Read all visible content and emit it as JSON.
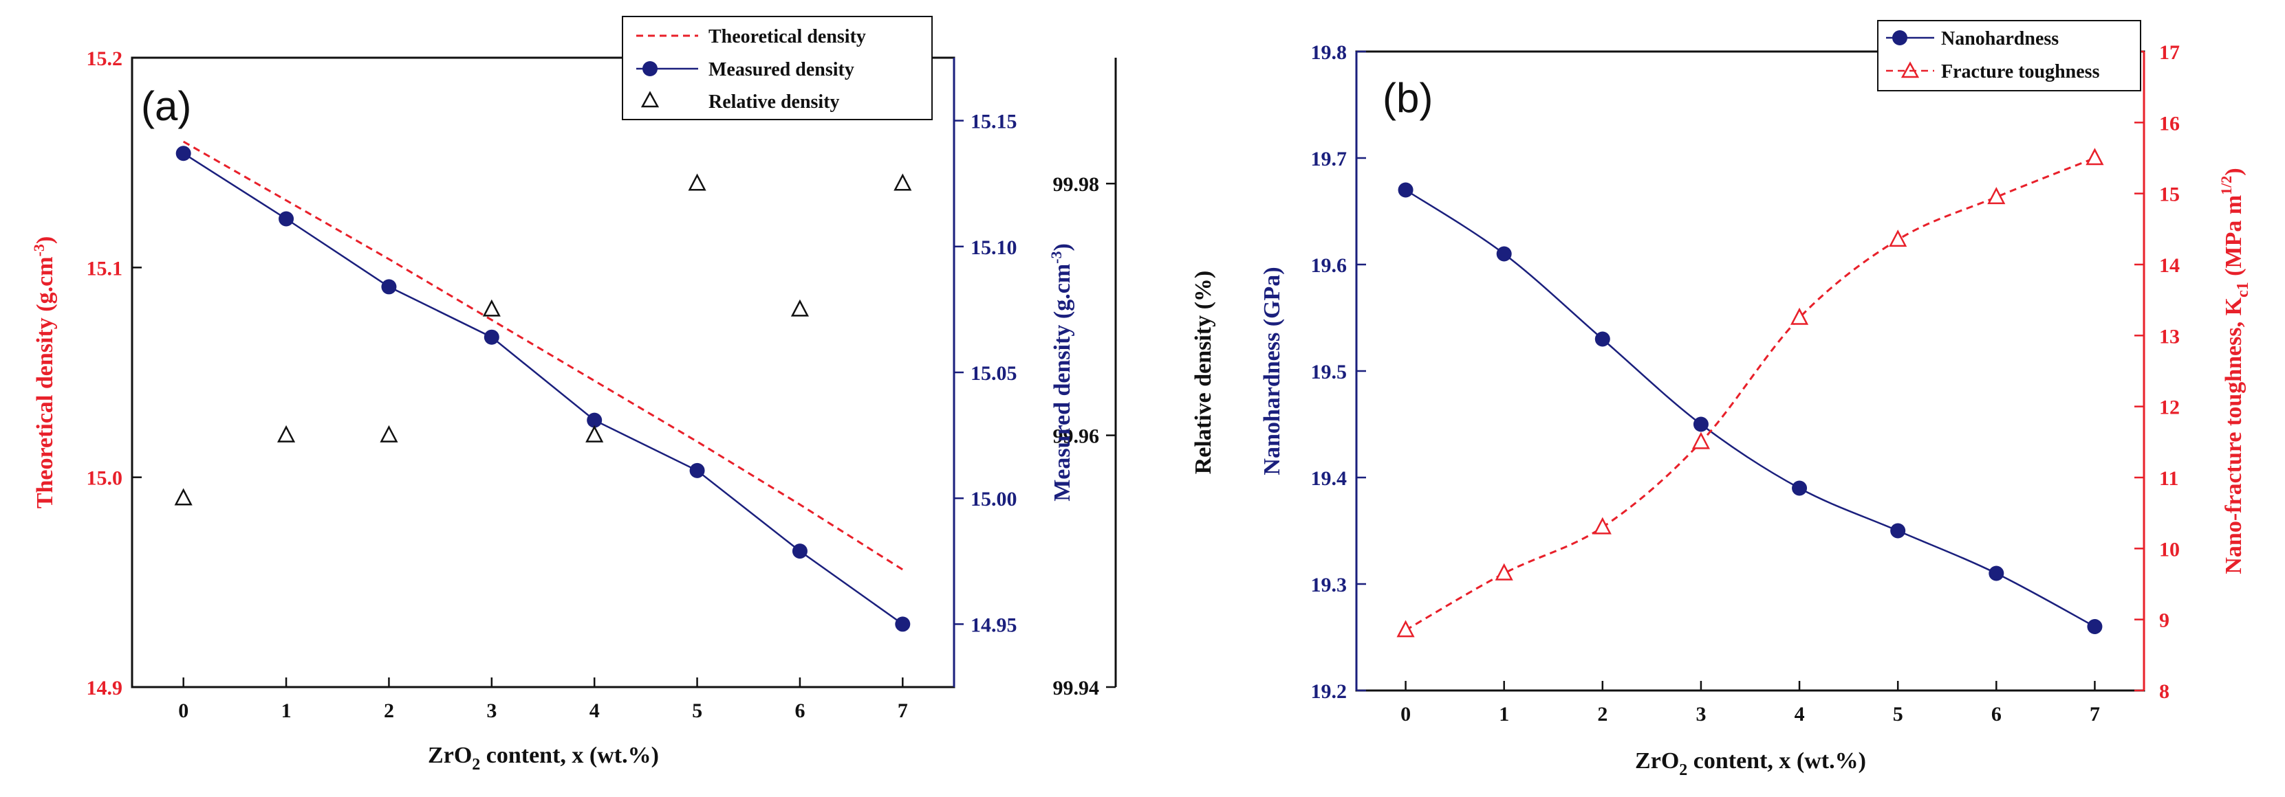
{
  "colors": {
    "red": "#e8202a",
    "navy": "#1a1f7d",
    "black": "#111111"
  },
  "chart_data": [
    {
      "type": "line",
      "panel_label": "(a)",
      "xlabel_main": "ZrO",
      "xlabel_sub": "2",
      "xlabel_rest": " content, x (wt.%)",
      "x": [
        0,
        1,
        2,
        3,
        4,
        5,
        6,
        7
      ],
      "x_ticks": [
        "0",
        "1",
        "2",
        "3",
        "4",
        "5",
        "6",
        "7"
      ],
      "xlim": [
        -0.5,
        7.5
      ],
      "axes": {
        "left": {
          "title_main": "Theoretical density (g.cm",
          "title_sup": "-3",
          "title_end": ")",
          "ylim": [
            14.9,
            15.2
          ],
          "ticks": [
            "14.9",
            "15.0",
            "15.1",
            "15.2"
          ],
          "tick_values": [
            14.9,
            15.0,
            15.1,
            15.2
          ]
        },
        "right1": {
          "title_main": "Measured density (g.cm",
          "title_sup": "-3",
          "title_end": ")",
          "ylim": [
            14.925,
            15.175
          ],
          "ticks": [
            "14.95",
            "15.00",
            "15.05",
            "15.10",
            "15.15"
          ],
          "tick_values": [
            14.95,
            15.0,
            15.05,
            15.1,
            15.15
          ]
        },
        "right2": {
          "title": "Relative density (%)",
          "ylim": [
            99.94,
            99.99
          ],
          "ticks": [
            "99.94",
            "99.96",
            "99.98"
          ],
          "tick_values": [
            99.94,
            99.96,
            99.98
          ]
        }
      },
      "series": [
        {
          "name": "Theoretical density",
          "axis": "left",
          "style": "dashed",
          "values": [
            15.16,
            15.132,
            15.104,
            15.075,
            15.046,
            15.017,
            14.987,
            14.956
          ]
        },
        {
          "name": "Measured density",
          "axis": "right1",
          "style": "solid-circle",
          "values": [
            15.137,
            15.111,
            15.084,
            15.064,
            15.031,
            15.011,
            14.979,
            14.95
          ]
        },
        {
          "name": "Relative density",
          "axis": "right2",
          "style": "triangle",
          "values": [
            99.955,
            99.96,
            99.96,
            99.97,
            99.96,
            99.98,
            99.97,
            99.98
          ]
        }
      ]
    },
    {
      "type": "line",
      "panel_label": "(b)",
      "xlabel_main": "ZrO",
      "xlabel_sub": "2",
      "xlabel_rest": " content, x (wt.%)",
      "x": [
        0,
        1,
        2,
        3,
        4,
        5,
        6,
        7
      ],
      "x_ticks": [
        "0",
        "1",
        "2",
        "3",
        "4",
        "5",
        "6",
        "7"
      ],
      "xlim": [
        -0.5,
        7.5
      ],
      "axes": {
        "left": {
          "title": "Nanohardness (GPa)",
          "ylim": [
            19.2,
            19.8
          ],
          "ticks": [
            "19.2",
            "19.3",
            "19.4",
            "19.5",
            "19.6",
            "19.7",
            "19.8"
          ],
          "tick_values": [
            19.2,
            19.3,
            19.4,
            19.5,
            19.6,
            19.7,
            19.8
          ]
        },
        "right": {
          "title_main": "Nano-fracture toughness, K",
          "title_sub": "c1",
          "title_mid": " (MPa m",
          "title_sup": "1/2",
          "title_end": ")",
          "ylim": [
            8,
            17
          ],
          "ticks": [
            "8",
            "9",
            "10",
            "11",
            "12",
            "13",
            "14",
            "15",
            "16",
            "17"
          ],
          "tick_values": [
            8,
            9,
            10,
            11,
            12,
            13,
            14,
            15,
            16,
            17
          ]
        }
      },
      "series": [
        {
          "name": "Nanohardness",
          "axis": "left",
          "style": "solid-circle",
          "values": [
            19.67,
            19.61,
            19.53,
            19.45,
            19.39,
            19.35,
            19.31,
            19.26
          ]
        },
        {
          "name": "Fracture toughness",
          "axis": "right",
          "style": "dashed-triangle",
          "values": [
            8.85,
            9.65,
            10.3,
            11.5,
            13.25,
            14.35,
            14.95,
            15.5
          ]
        }
      ]
    }
  ]
}
